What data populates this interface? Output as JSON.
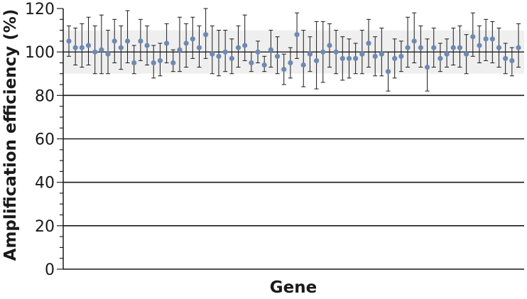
{
  "chart_data": {
    "type": "scatter",
    "title": "",
    "xlabel": "Gene",
    "ylabel": "Amplification efficiency (%)",
    "ylim": [
      0,
      120
    ],
    "y_ticks": [
      0,
      20,
      40,
      60,
      80,
      100,
      120
    ],
    "y_tick_labels": [
      "0",
      "20",
      "40",
      "60",
      "80",
      "100",
      "120"
    ],
    "y_minor_step": 5,
    "reference_line": 100,
    "acceptable_band": [
      90,
      110
    ],
    "grid": true,
    "legend": "none",
    "colors": {
      "marker": "#6d8ab3",
      "error_bar": "#1a1a1a",
      "band": "#efefef",
      "grid": "#1a1a1a"
    },
    "series": [
      {
        "values": [
          105,
          102,
          102,
          103,
          100,
          101,
          99,
          105,
          102,
          105,
          95,
          105,
          103,
          95,
          96,
          104,
          95,
          101,
          104,
          106,
          102,
          108,
          99,
          98,
          100,
          97,
          102,
          103,
          95,
          100,
          94,
          101,
          98,
          92,
          95,
          108,
          94,
          99,
          96,
          100,
          103,
          100,
          97,
          97,
          97,
          99,
          104,
          98,
          99,
          91,
          97,
          98,
          102,
          105,
          102,
          93,
          102,
          97,
          99,
          102,
          102,
          99,
          107,
          103,
          106,
          106,
          102,
          97,
          96,
          102
        ],
        "error_low": [
          98,
          94,
          93,
          94,
          90,
          90,
          90,
          95,
          92,
          95,
          90,
          96,
          94,
          88,
          89,
          95,
          91,
          91,
          93,
          97,
          93,
          97,
          90,
          89,
          91,
          90,
          93,
          96,
          91,
          95,
          91,
          93,
          90,
          85,
          88,
          97,
          84,
          91,
          83,
          86,
          93,
          90,
          87,
          88,
          90,
          90,
          93,
          89,
          89,
          82,
          88,
          91,
          93,
          95,
          93,
          82,
          93,
          91,
          93,
          94,
          93,
          90,
          98,
          95,
          96,
          95,
          93,
          90,
          89,
          93
        ],
        "error_high": [
          112,
          111,
          113,
          116,
          112,
          117,
          110,
          115,
          112,
          119,
          103,
          115,
          112,
          103,
          104,
          113,
          101,
          116,
          113,
          116,
          112,
          120,
          112,
          110,
          110,
          106,
          112,
          117,
          100,
          105,
          98,
          110,
          107,
          99,
          102,
          118,
          110,
          107,
          114,
          114,
          113,
          110,
          107,
          106,
          104,
          110,
          115,
          107,
          111,
          100,
          106,
          105,
          116,
          118,
          112,
          106,
          111,
          104,
          106,
          111,
          112,
          108,
          118,
          112,
          115,
          114,
          111,
          104,
          102,
          113
        ]
      }
    ]
  }
}
